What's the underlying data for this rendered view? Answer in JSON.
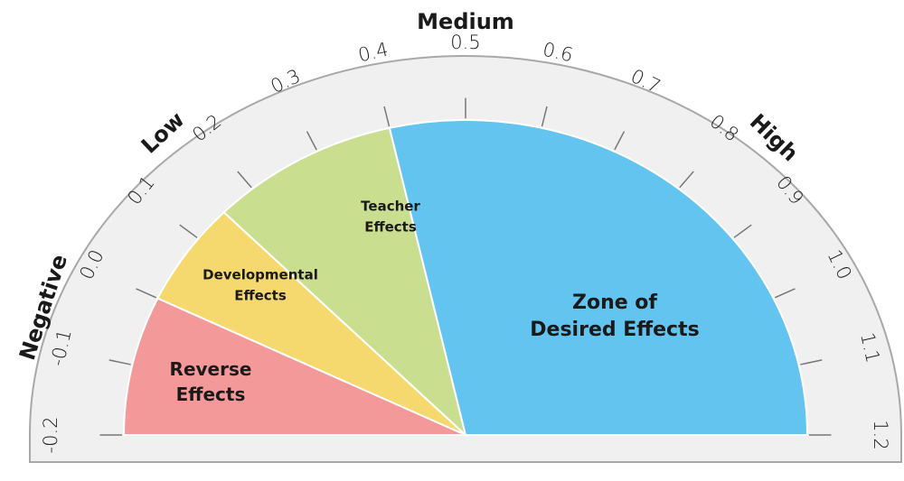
{
  "chart_data": {
    "type": "gauge",
    "lim": [
      -0.2,
      1.2
    ],
    "ticks": [
      -0.2,
      -0.1,
      {
        "value": 0,
        "label": "0.0"
      },
      0.1,
      0.2,
      0.3,
      0.4,
      0.5,
      0.6,
      0.7,
      0.8,
      0.9,
      {
        "value": 1,
        "label": "1.0"
      },
      1.1,
      1.2
    ],
    "zones": [
      {
        "label_lines": [
          "Reverse",
          "Effects"
        ],
        "color": "#f4999a",
        "start": -0.2,
        "end": 0
      },
      {
        "label_lines": [
          "Developmental",
          "Effects"
        ],
        "color": "#f5d96e",
        "start": 0,
        "end": 0.15
      },
      {
        "label_lines": [
          "Teacher",
          "Effects"
        ],
        "color": "#c9de8f",
        "start": 0.15,
        "end": 0.4
      },
      {
        "label_lines": [
          "Zone of",
          "Desired Effects"
        ],
        "color": "#63c5ef",
        "start": 0.4,
        "end": 1.2
      }
    ],
    "bands": [
      "Negative",
      "Low",
      "Medium",
      "High"
    ]
  }
}
